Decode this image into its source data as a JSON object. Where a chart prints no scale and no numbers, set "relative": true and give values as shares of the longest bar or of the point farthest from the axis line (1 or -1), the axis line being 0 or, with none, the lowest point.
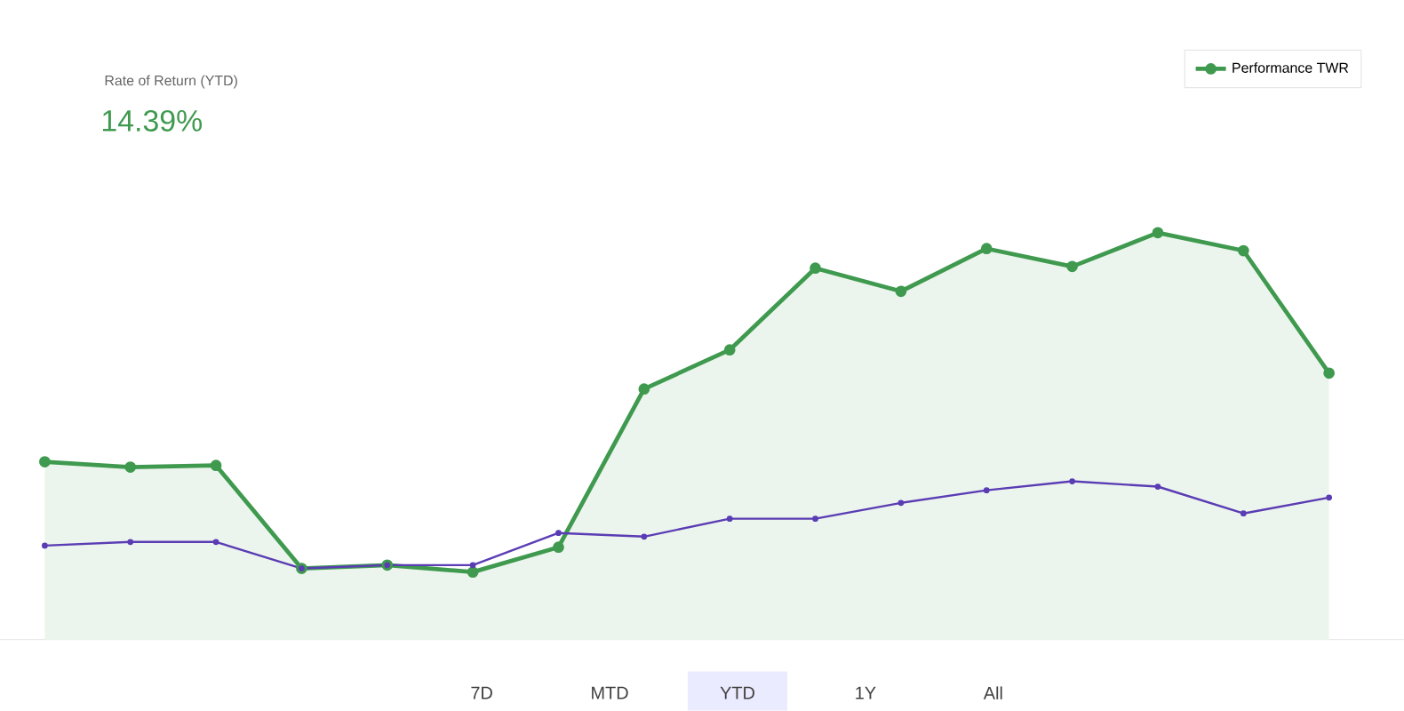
{
  "chart_data": {
    "type": "line",
    "title": "Rate of Return (YTD)",
    "subtitle": "14.39%",
    "relative": true,
    "marker": "circle",
    "legend": "top right",
    "categories": [
      null,
      null,
      null,
      null,
      null,
      null,
      null,
      null,
      null,
      null,
      null,
      null,
      null,
      null,
      null,
      null
    ],
    "series": [
      {
        "name": "Performance TWR",
        "type": "area",
        "color": "#3f9a4f",
        "values": [
          0.437,
          0.424,
          0.428,
          0.175,
          0.183,
          0.166,
          0.227,
          0.616,
          0.712,
          0.913,
          0.856,
          0.961,
          0.917,
          1,
          0.956,
          0.655
        ]
      },
      {
        "color": "#5a3cb4",
        "values": [
          0.231,
          0.24,
          0.24,
          0.175,
          0.183,
          0.183,
          0.262,
          0.253,
          0.297,
          0.297,
          0.336,
          0.367,
          0.389,
          0.376,
          0.31,
          0.349
        ]
      }
    ],
    "annotations": [
      "7D",
      "MTD",
      "YTD",
      "1Y",
      "All"
    ]
  }
}
